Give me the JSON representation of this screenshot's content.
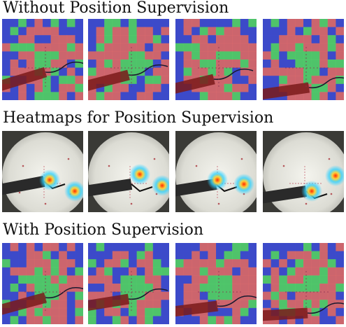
{
  "figure": {
    "sections": [
      {
        "title": "Without Position Supervision",
        "kind": "segmentation",
        "frames": 4
      },
      {
        "title": "Heatmaps for Position Supervision",
        "kind": "heatmap",
        "frames": 4
      },
      {
        "title": "With Position Supervision",
        "kind": "segmentation",
        "frames": 4
      }
    ]
  },
  "colors": {
    "segment_red": "#e26d6d",
    "segment_green": "#54d86a",
    "segment_blue": "#3f4fd6",
    "segment_darkred": "#7a1a1a",
    "heatmap_hot": "#ff2a00",
    "heatmap_warm": "#ffd23a",
    "heatmap_cool": "#2fd1ff",
    "plate": "#dcdcd4",
    "instrument": "#2a2a2a"
  }
}
